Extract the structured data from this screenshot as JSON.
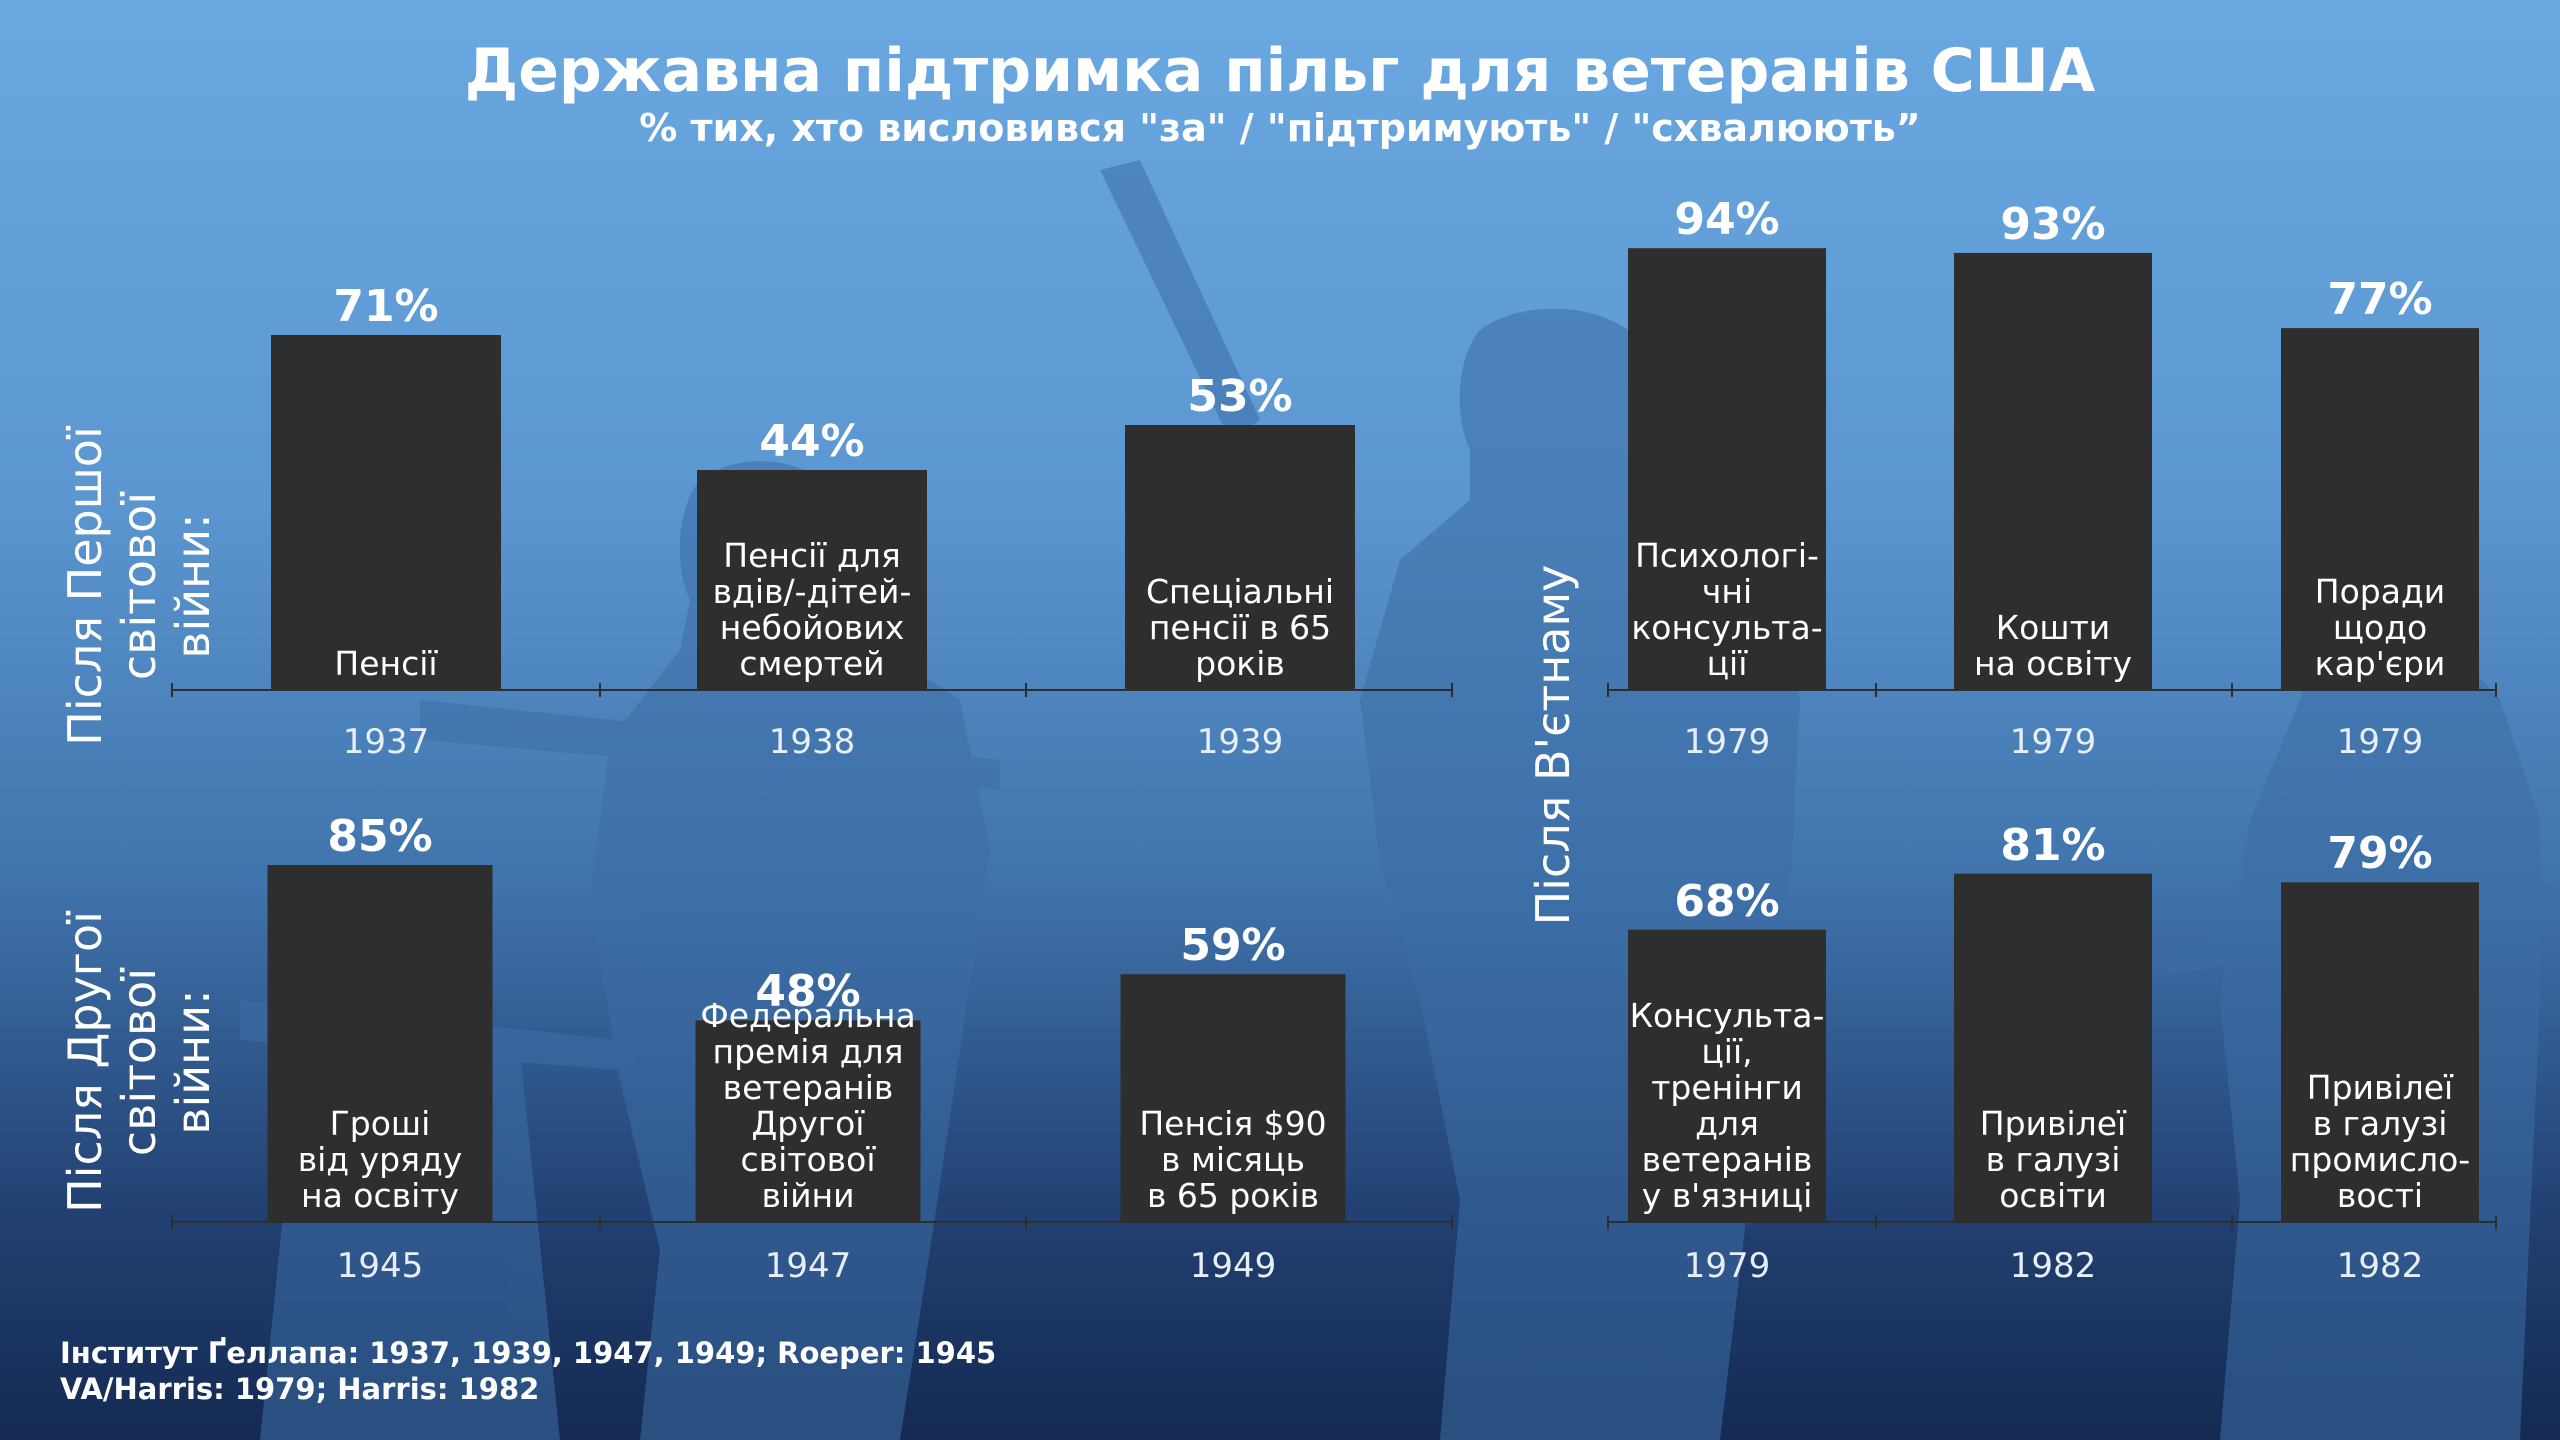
{
  "title": "Державна підтримка пільг для ветеранів США",
  "subtitle": "% тих, хто висловився \"за\" / \"підтримують\" / \"схвалюють”",
  "source": "Інститут Ґеллапа: 1937, 1939, 1947, 1949; Roeper: 1945\nVA/Harris: 1979; Harris: 1982",
  "group_labels": {
    "ww1": "Після Першої\nсвітової війни:",
    "ww2": "Після Другої\nсвітової війни:",
    "vietnam": "Після В'єтнаму"
  },
  "colors": {
    "bar": "#2e2e2e",
    "text": "#ffffff"
  },
  "chart_data": [
    {
      "type": "bar",
      "title": "Після Першої світової війни:",
      "categories": [
        "Пенсії",
        "Пенсії для вдів/-дітей-небойових смертей",
        "Спеціальні пенсії в 65 років"
      ],
      "label_lines": [
        "Пенсії",
        "Пенсії для\nвдів/-дітей-\nнебойових\nсмертей",
        "Спеціальні\nпенсії в 65\nроків"
      ],
      "x": [
        "1937",
        "1938",
        "1939"
      ],
      "values": [
        71,
        44,
        53
      ],
      "value_labels": [
        "71%",
        "44%",
        "53%"
      ],
      "ylim": [
        0,
        100
      ]
    },
    {
      "type": "bar",
      "title": "Після Другої світової війни:",
      "categories": [
        "Гроші від уряду на освіту",
        "Федеральна премія для ветеранів Другої світової війни",
        "Пенсія $90 в місяць в 65 років"
      ],
      "label_lines": [
        "Гроші\nвід уряду\nна освіту",
        "Федеральна\nпремія для\nветеранів\nДругої\nсвітової\nвійни",
        "Пенсія $90\nв місяць\nв 65 років"
      ],
      "x": [
        "1945",
        "1947",
        "1949"
      ],
      "values": [
        85,
        48,
        59
      ],
      "value_labels": [
        "85%",
        "48%",
        "59%"
      ],
      "ylim": [
        0,
        100
      ]
    },
    {
      "type": "bar",
      "title": "Після В'єтнаму",
      "categories": [
        "Психологічні консультації",
        "Кошти на освіту",
        "Поради щодо кар'єри"
      ],
      "label_lines": [
        "Психологі-\nчні\nконсульта-\nції",
        "Кошти\nна освіту",
        "Поради\nщодо\nкар'єри"
      ],
      "x": [
        "1979",
        "1979",
        "1979"
      ],
      "values": [
        94,
        93,
        77
      ],
      "value_labels": [
        "94%",
        "93%",
        "77%"
      ],
      "ylim": [
        0,
        100
      ]
    },
    {
      "type": "bar",
      "title": "Після В'єтнаму",
      "categories": [
        "Консультації, тренінги для ветеранів у в'язниці",
        "Привілеї в галузі освіти",
        "Привілеї в галузі промисловості"
      ],
      "label_lines": [
        "Консульта-\nції,\nтренінги\nдля\nветеранів\nу в'язниці",
        "Привілеї\nв галузі\nосвіти",
        "Привілеї\nв галузі\nпромисло-\nвості"
      ],
      "x": [
        "1979",
        "1982",
        "1982"
      ],
      "values": [
        68,
        81,
        79
      ],
      "value_labels": [
        "68%",
        "81%",
        "79%"
      ],
      "ylim": [
        0,
        100
      ]
    }
  ]
}
